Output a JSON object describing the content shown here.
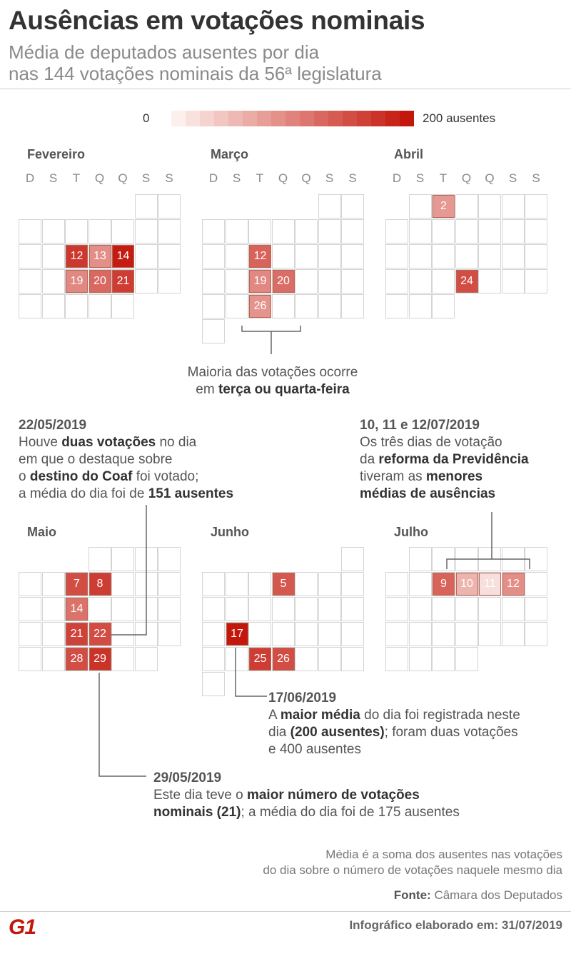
{
  "header": {
    "title": "Ausências em votações nominais",
    "subtitle_line1": "Média de deputados ausentes por dia",
    "subtitle_line2": "nas 144 votações nominais da 56ª legislatura"
  },
  "legend": {
    "min_label": "0",
    "max_label": "200 ausentes",
    "min_color": "#fcefec",
    "max_color": "#c4170c"
  },
  "chart_data": {
    "type": "heatmap",
    "title": "Ausências em votações nominais",
    "value_label": "média de deputados ausentes por dia",
    "scale": [
      0,
      200
    ],
    "weekday_labels": [
      "D",
      "S",
      "T",
      "Q",
      "Q",
      "S",
      "S"
    ],
    "months": [
      {
        "name": "Fevereiro",
        "days": 28,
        "first_weekday": 5,
        "values": {
          "12": 170,
          "13": 90,
          "14": 195,
          "19": 95,
          "20": 125,
          "21": 165
        }
      },
      {
        "name": "Março",
        "days": 31,
        "first_weekday": 5,
        "values": {
          "12": 130,
          "19": 95,
          "20": 120,
          "26": 85
        }
      },
      {
        "name": "Abril",
        "days": 30,
        "first_weekday": 1,
        "values": {
          "2": 80,
          "24": 150
        }
      },
      {
        "name": "Maio",
        "days": 31,
        "first_weekday": 3,
        "values": {
          "7": 150,
          "8": 165,
          "14": 115,
          "21": 160,
          "22": 151,
          "28": 150,
          "29": 175
        }
      },
      {
        "name": "Junho",
        "days": 30,
        "first_weekday": 6,
        "values": {
          "5": 140,
          "17": 200,
          "25": 165,
          "26": 150
        }
      },
      {
        "name": "Julho",
        "days": 31,
        "first_weekday": 1,
        "values": {
          "9": 130,
          "10": 55,
          "11": 15,
          "12": 90
        }
      }
    ]
  },
  "annotations": {
    "midweek": {
      "line1": "Maioria das votações ocorre",
      "line2_prefix": "em ",
      "line2_bold": "terça ou quarta-feira"
    },
    "coaf": {
      "date": "22/05/2019",
      "l1_pre": "Houve ",
      "l1_bold": "duas votações",
      "l1_post": " no dia",
      "l2": "em que o destaque sobre",
      "l3_pre": "o ",
      "l3_bold": "destino do Coaf",
      "l3_post": " foi votado;",
      "l4_pre": "a média do dia foi de ",
      "l4_bold": "151 ausentes"
    },
    "reforma": {
      "date": "10, 11 e 12/07/2019",
      "l1": "Os três dias de votação",
      "l2_pre": "da ",
      "l2_bold": "reforma da Previdência",
      "l3_pre": "tiveram as ",
      "l3_bold": "menores",
      "l4_bold": "médias de ausências"
    },
    "maior_media": {
      "date": "17/06/2019",
      "l1_pre": "A ",
      "l1_bold": "maior média",
      "l1_post": " do dia foi registrada neste",
      "l2_pre": "dia ",
      "l2_bold": "(200 ausentes)",
      "l2_post": "; foram duas votações",
      "l3": "e 400 ausentes"
    },
    "maior_numero": {
      "date": "29/05/2019",
      "l1_pre": "Este dia teve o ",
      "l1_bold": "maior número de votações",
      "l2_bold": "nominais (21)",
      "l2_post": "; a média do dia foi de 175 ausentes"
    }
  },
  "footer": {
    "note_line1": "Média é a soma dos ausentes nas votações",
    "note_line2": "do dia sobre o número de votações naquele mesmo dia",
    "source_label": "Fonte:",
    "source_value": " Câmara dos Deputados",
    "credit": "Infográfico elaborado em: 31/07/2019",
    "logo": "G1"
  }
}
